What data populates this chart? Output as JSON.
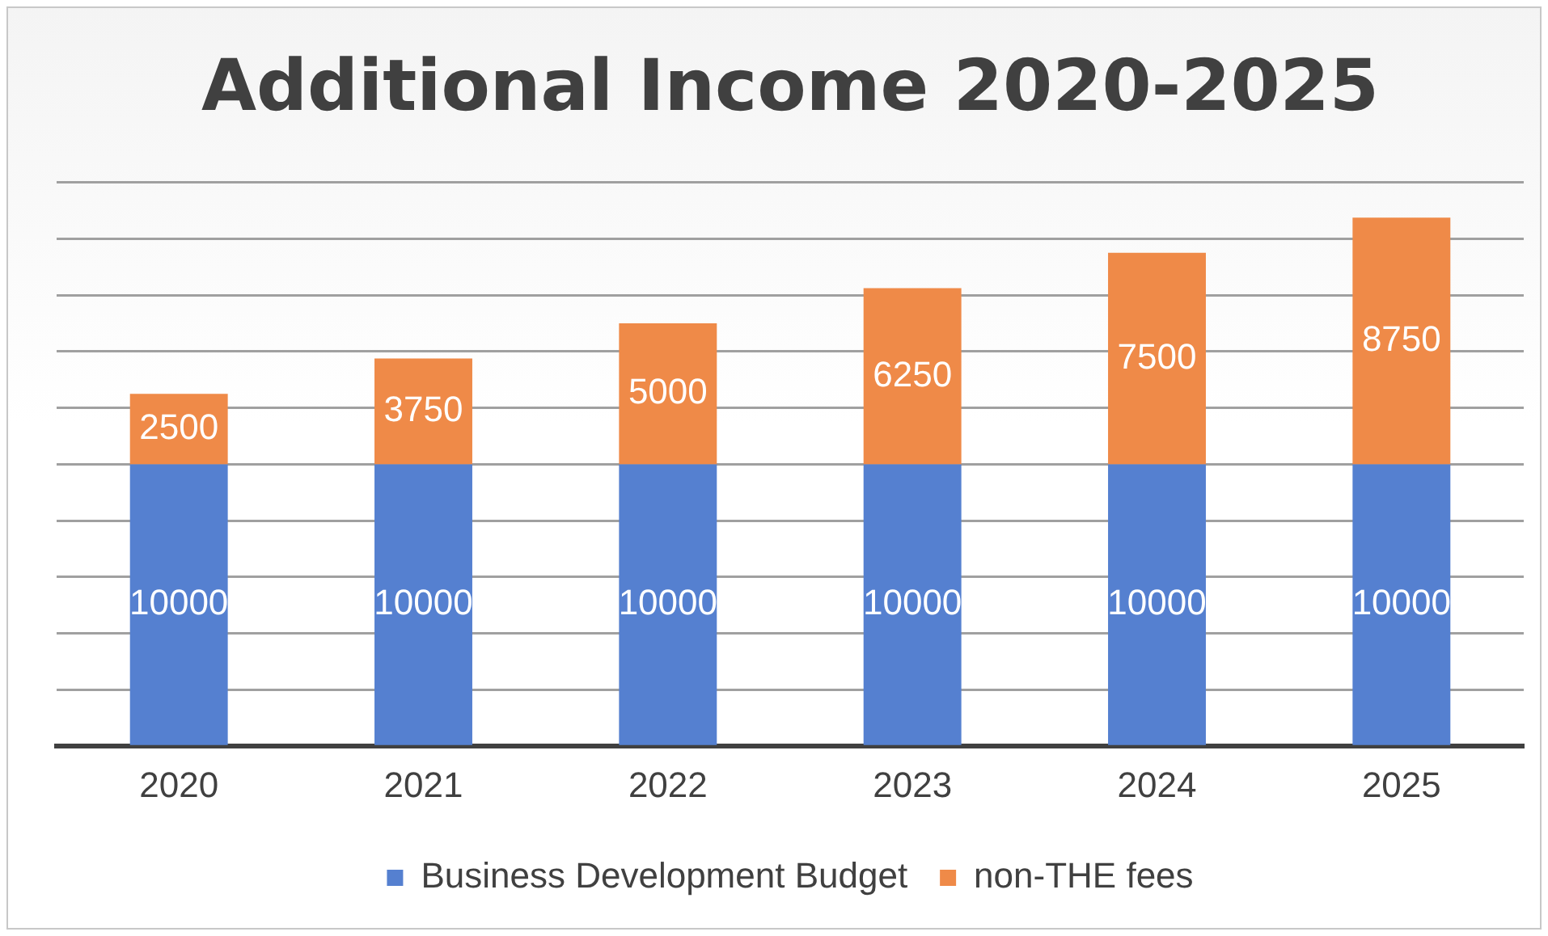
{
  "chart_data": {
    "type": "bar",
    "title": "Additional Income 2020-2025",
    "categories": [
      "2020",
      "2021",
      "2022",
      "2023",
      "2024",
      "2025"
    ],
    "series": [
      {
        "name": "Business Development Budget",
        "color": "#5580d0",
        "values": [
          10000,
          10000,
          10000,
          10000,
          10000,
          10000
        ]
      },
      {
        "name": "non-THE fees",
        "color": "#ef8a48",
        "values": [
          2500,
          3750,
          5000,
          6250,
          7500,
          8750
        ]
      }
    ],
    "stacked": true,
    "data_labels": true,
    "ylim": [
      0,
      20000
    ],
    "yticks": [
      {
        "value": 0,
        "label": null
      },
      {
        "value": 2000,
        "label": null
      },
      {
        "value": 4000,
        "label": null
      },
      {
        "value": 6000,
        "label": null
      },
      {
        "value": 8000,
        "label": null
      },
      {
        "value": 10000,
        "label": null
      },
      {
        "value": 12000,
        "label": null
      },
      {
        "value": 14000,
        "label": null
      },
      {
        "value": 16000,
        "label": null
      },
      {
        "value": 18000,
        "label": null
      },
      {
        "value": 20000,
        "label": null
      }
    ],
    "tick_labels": "x",
    "grid": "y",
    "legend": "bottom"
  }
}
